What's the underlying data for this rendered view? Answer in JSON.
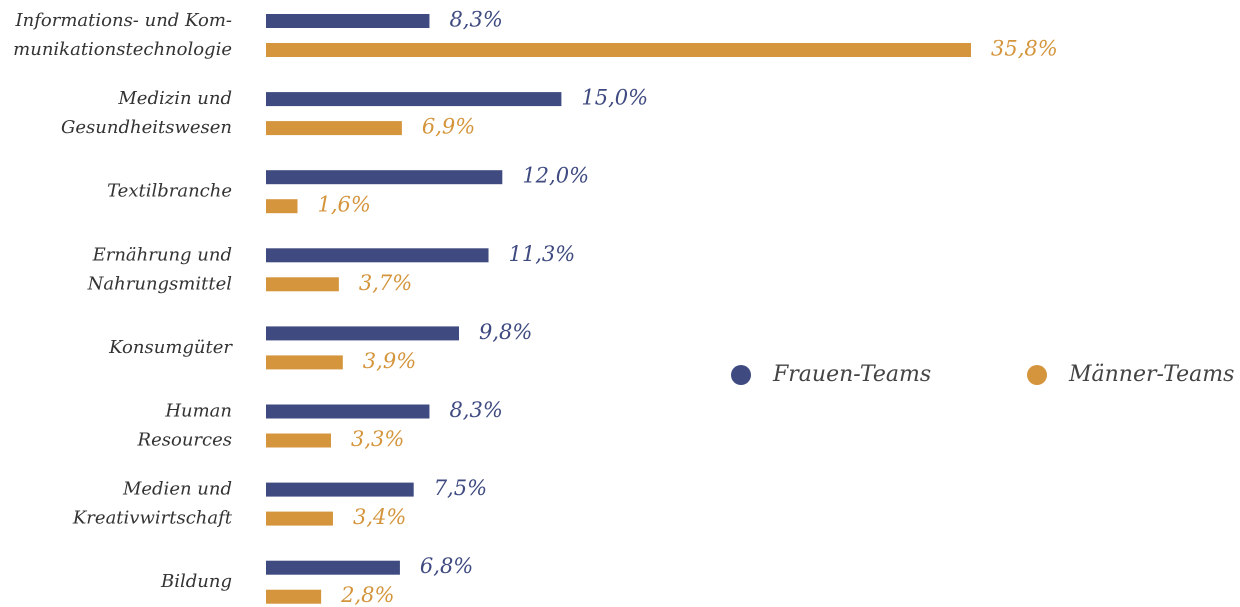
{
  "chart_data": {
    "type": "hbar",
    "categories": [
      "Informations- und Kom-\nmunikationstechnologie",
      "Medizin und\nGesundheitswesen",
      "Textilbranche",
      "Ernährung und\nNahrungsmittel",
      "Konsumgüter",
      "Human\nResources",
      "Medien und\nKreativwirtschaft",
      "Bildung"
    ],
    "series": [
      {
        "name": "Frauen-Teams",
        "color": "#3e4a80",
        "values": [
          8.3,
          15.0,
          12.0,
          11.3,
          9.8,
          8.3,
          7.5,
          6.8
        ],
        "value_labels": [
          "8,3%",
          "15,0%",
          "12,0%",
          "11,3%",
          "9,8%",
          "8,3%",
          "7,5%",
          "6,8%"
        ]
      },
      {
        "name": "Männer-Teams",
        "color": "#d4953c",
        "values": [
          35.8,
          6.9,
          1.6,
          3.7,
          3.9,
          3.3,
          3.4,
          2.8
        ],
        "value_labels": [
          "35,8%",
          "6,9%",
          "1,6%",
          "3,7%",
          "3,9%",
          "3,3%",
          "3,4%",
          "2,8%"
        ]
      }
    ]
  }
}
